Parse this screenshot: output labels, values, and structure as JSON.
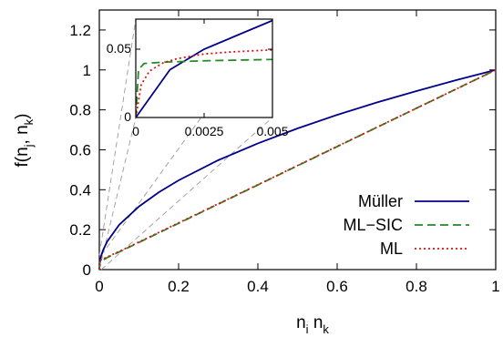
{
  "chart_data": {
    "type": "line",
    "title": "",
    "xlabel": {
      "base": "n",
      "sub1": "i",
      "mid": " n",
      "sub2": "k"
    },
    "ylabel": {
      "base": "f(n",
      "sub1": "j",
      "mid": ", n",
      "sub2": "k",
      "end": ")"
    },
    "xlim": [
      0,
      1
    ],
    "ylim": [
      0,
      1.3
    ],
    "xticks": [
      0,
      0.2,
      0.4,
      0.6,
      0.8,
      1
    ],
    "xtick_labels": [
      "0",
      "0.2",
      "0.4",
      "0.6",
      "0.8",
      "1"
    ],
    "yticks": [
      0,
      0.2,
      0.4,
      0.6,
      0.8,
      1,
      1.2
    ],
    "ytick_labels": [
      "0",
      "0.2",
      "0.4",
      "0.6",
      "0.8",
      "1",
      "1.2"
    ],
    "grid": false,
    "legend_position": "bottom-right",
    "series": [
      {
        "name": "Müller",
        "color": "#00008b",
        "style": "solid",
        "x": [
          0,
          0.00125,
          0.0025,
          0.005,
          0.01,
          0.02,
          0.05,
          0.1,
          0.15,
          0.2,
          0.3,
          0.4,
          0.5,
          0.6,
          0.7,
          0.8,
          0.9,
          1
        ],
        "y": [
          0,
          0.035,
          0.05,
          0.071,
          0.1,
          0.141,
          0.224,
          0.316,
          0.387,
          0.447,
          0.548,
          0.632,
          0.707,
          0.775,
          0.837,
          0.894,
          0.949,
          1
        ]
      },
      {
        "name": "ML−SIC",
        "color": "#228b22",
        "style": "dashed",
        "x": [
          0,
          0.0001,
          0.0003,
          0.001,
          0.0025,
          0.005,
          0.02,
          0.1,
          0.2,
          0.4,
          0.6,
          0.8,
          1
        ],
        "y": [
          0,
          0.035,
          0.0395,
          0.0405,
          0.0415,
          0.0425,
          0.06,
          0.136,
          0.232,
          0.424,
          0.616,
          0.808,
          1
        ]
      },
      {
        "name": "ML",
        "color": "#e01010",
        "style": "dotted",
        "x": [
          0,
          0.0002,
          0.0005,
          0.001,
          0.0015,
          0.0025,
          0.0035,
          0.005,
          0.02,
          0.1,
          0.2,
          0.4,
          0.6,
          0.8,
          1
        ],
        "y": [
          0,
          0.024,
          0.034,
          0.04,
          0.043,
          0.0465,
          0.048,
          0.0495,
          0.063,
          0.138,
          0.234,
          0.425,
          0.617,
          0.808,
          1
        ]
      }
    ],
    "inset": {
      "xlim": [
        0,
        0.005
      ],
      "ylim": [
        0,
        0.072
      ],
      "xticks": [
        0,
        0.0025,
        0.005
      ],
      "xtick_labels": [
        "0",
        "0.0025",
        "0.005"
      ],
      "yticks": [
        0,
        0.05
      ],
      "ytick_labels": [
        "0",
        "0.05"
      ]
    }
  }
}
